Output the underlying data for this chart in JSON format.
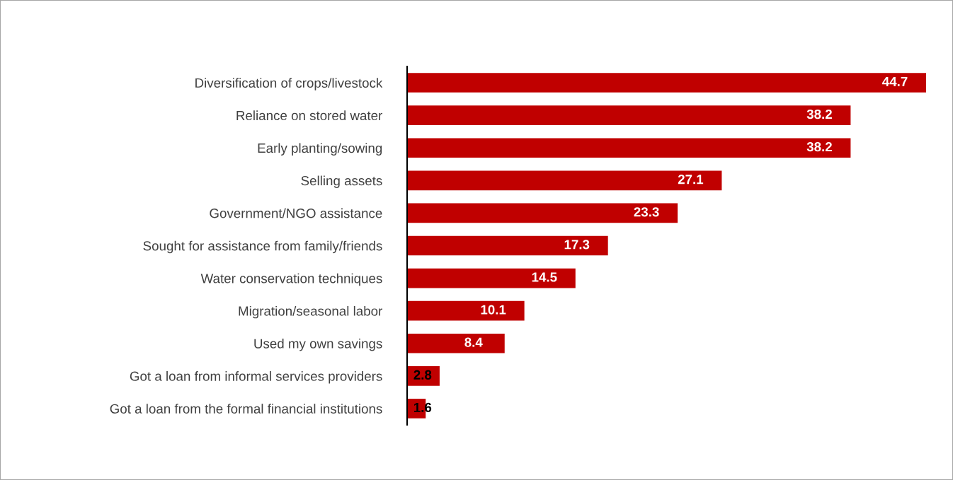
{
  "chart_data": {
    "type": "bar",
    "orientation": "horizontal",
    "categories": [
      "Diversification of crops/livestock",
      "Reliance on stored water",
      "Early planting/sowing",
      "Selling assets",
      "Government/NGO assistance",
      "Sought for assistance from family/friends",
      "Water conservation techniques",
      "Migration/seasonal labor",
      "Used my own savings",
      "Got a loan from informal services providers",
      "Got a loan from the formal financial institutions"
    ],
    "values": [
      44.7,
      38.2,
      38.2,
      27.1,
      23.3,
      17.3,
      14.5,
      10.1,
      8.4,
      2.8,
      1.6
    ],
    "color": "#c00000",
    "data_labels": true,
    "grid": false,
    "legend": false
  }
}
